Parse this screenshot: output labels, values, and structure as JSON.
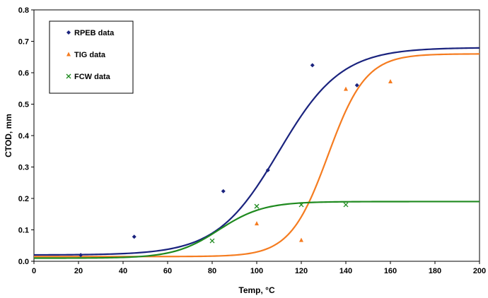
{
  "chart_data": {
    "type": "scatter",
    "xlabel": "Temp, °C",
    "ylabel": "CTOD, mm",
    "xlim": [
      0,
      200
    ],
    "ylim": [
      0,
      0.8
    ],
    "x_ticks": [
      "0",
      "20",
      "40",
      "60",
      "80",
      "100",
      "120",
      "140",
      "160",
      "180",
      "200"
    ],
    "y_ticks": [
      "0.0",
      "0.1",
      "0.2",
      "0.3",
      "0.4",
      "0.5",
      "0.6",
      "0.7",
      "0.8"
    ],
    "grid": false,
    "legend_position": "top-left",
    "series": [
      {
        "name": "RPEB data",
        "marker": "diamond",
        "color": "#1a237e",
        "points": [
          [
            21,
            0.02
          ],
          [
            45,
            0.078
          ],
          [
            85,
            0.223
          ],
          [
            105,
            0.29
          ],
          [
            125,
            0.624
          ],
          [
            145,
            0.56
          ]
        ],
        "fit": {
          "lower": 0.02,
          "upper": 0.68,
          "midpoint": 110,
          "width": 14
        }
      },
      {
        "name": "TIG data",
        "marker": "triangle",
        "color": "#f57c20",
        "points": [
          [
            100,
            0.12
          ],
          [
            120,
            0.067
          ],
          [
            140,
            0.548
          ],
          [
            160,
            0.572
          ]
        ],
        "fit": {
          "lower": 0.015,
          "upper": 0.66,
          "midpoint": 132,
          "width": 8.5
        }
      },
      {
        "name": "FCW data",
        "marker": "x",
        "color": "#1f8a1f",
        "points": [
          [
            80,
            0.065
          ],
          [
            100,
            0.175
          ],
          [
            120,
            0.18
          ],
          [
            140,
            0.18
          ]
        ],
        "fit": {
          "lower": 0.01,
          "upper": 0.19,
          "midpoint": 83,
          "width": 10
        }
      }
    ]
  }
}
